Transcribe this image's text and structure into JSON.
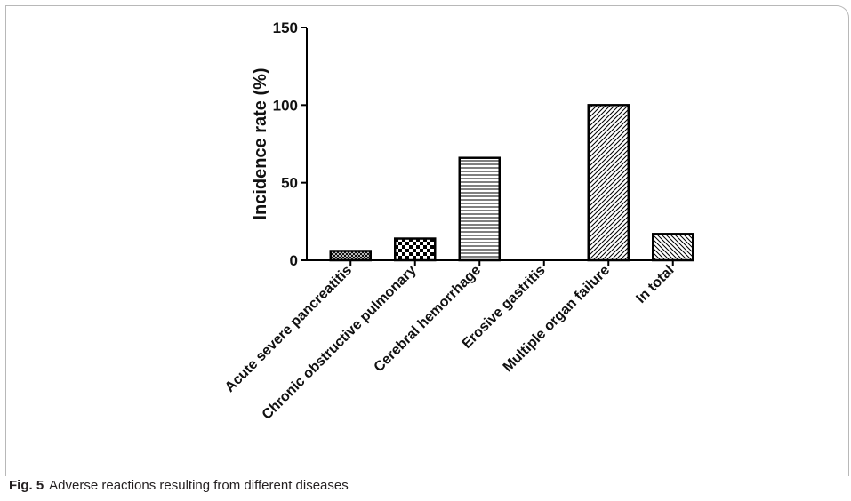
{
  "figure": {
    "caption_label": "Fig. 5",
    "caption_text": "Adverse reactions resulting from different diseases"
  },
  "chart_data": {
    "type": "bar",
    "title": "",
    "xlabel": "",
    "ylabel": "Incidence rate (%)",
    "ylim": [
      0,
      150
    ],
    "yticks": [
      0,
      50,
      100,
      150
    ],
    "grid": false,
    "categories": [
      "Acute severe pancreatitis",
      "Chronic obstructive pulmonary",
      "Cerebral hemorrhage",
      "Erosive gastritis",
      "Multiple organ failure",
      "In total"
    ],
    "values": [
      6,
      14,
      66,
      0,
      100,
      17
    ],
    "bar_fill": "#ffffff",
    "bar_stroke": "#000000",
    "bar_patterns": [
      "crosshatch",
      "checker",
      "horizontal-lines",
      "none",
      "diagonal-lines",
      "diagonal-lines-reverse"
    ]
  }
}
